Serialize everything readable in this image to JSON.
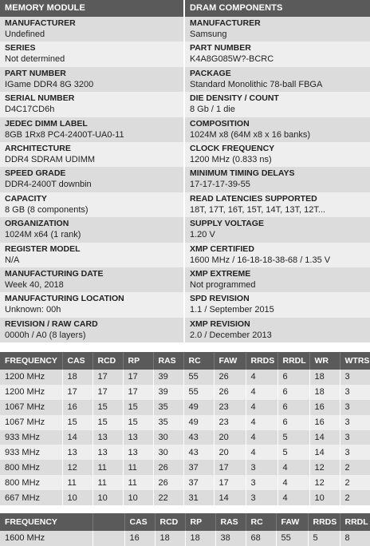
{
  "left": {
    "header": "MEMORY MODULE",
    "fields": [
      {
        "label": "MANUFACTURER",
        "value": "Undefined"
      },
      {
        "label": "SERIES",
        "value": "Not determined"
      },
      {
        "label": "PART NUMBER",
        "value": "IGame DDR4 8G 3200"
      },
      {
        "label": "SERIAL NUMBER",
        "value": "D4C17CD6h"
      },
      {
        "label": "JEDEC DIMM LABEL",
        "value": "8GB 1Rx8 PC4-2400T-UA0-11"
      },
      {
        "label": "ARCHITECTURE",
        "value": "DDR4 SDRAM UDIMM"
      },
      {
        "label": "SPEED GRADE",
        "value": "DDR4-2400T downbin"
      },
      {
        "label": "CAPACITY",
        "value": "8 GB (8 components)"
      },
      {
        "label": "ORGANIZATION",
        "value": "1024M x64 (1 rank)"
      },
      {
        "label": "REGISTER MODEL",
        "value": "N/A"
      },
      {
        "label": "MANUFACTURING DATE",
        "value": "Week 40, 2018"
      },
      {
        "label": "MANUFACTURING LOCATION",
        "value": "Unknown: 00h"
      },
      {
        "label": "REVISION / RAW CARD",
        "value": "0000h / A0 (8 layers)"
      }
    ]
  },
  "right": {
    "header": "DRAM COMPONENTS",
    "fields": [
      {
        "label": "MANUFACTURER",
        "value": "Samsung"
      },
      {
        "label": "PART NUMBER",
        "value": "K4A8G085W?-BCRC"
      },
      {
        "label": "PACKAGE",
        "value": "Standard Monolithic 78-ball FBGA"
      },
      {
        "label": "DIE DENSITY / COUNT",
        "value": "8 Gb / 1 die"
      },
      {
        "label": "COMPOSITION",
        "value": "1024M x8 (64M x8 x 16 banks)"
      },
      {
        "label": "CLOCK FREQUENCY",
        "value": "1200 MHz (0.833 ns)"
      },
      {
        "label": "MINIMUM TIMING DELAYS",
        "value": "17-17-17-39-55"
      },
      {
        "label": "READ LATENCIES SUPPORTED",
        "value": "18T, 17T, 16T, 15T, 14T, 13T, 12T..."
      },
      {
        "label": "SUPPLY VOLTAGE",
        "value": "1.20 V"
      },
      {
        "label": "XMP CERTIFIED",
        "value": "1600 MHz / 16-18-18-38-68 / 1.35 V"
      },
      {
        "label": "XMP EXTREME",
        "value": "Not programmed"
      },
      {
        "label": "SPD REVISION",
        "value": "1.1 / September 2015"
      },
      {
        "label": "XMP REVISION",
        "value": "2.0 / December 2013"
      }
    ]
  },
  "jedec_table": {
    "headers": [
      "FREQUENCY",
      "CAS",
      "RCD",
      "RP",
      "RAS",
      "RC",
      "FAW",
      "RRDS",
      "RRDL",
      "WR",
      "WTRS"
    ],
    "rows": [
      [
        "1200 MHz",
        "18",
        "17",
        "17",
        "39",
        "55",
        "26",
        "4",
        "6",
        "18",
        "3"
      ],
      [
        "1200 MHz",
        "17",
        "17",
        "17",
        "39",
        "55",
        "26",
        "4",
        "6",
        "18",
        "3"
      ],
      [
        "1067 MHz",
        "16",
        "15",
        "15",
        "35",
        "49",
        "23",
        "4",
        "6",
        "16",
        "3"
      ],
      [
        "1067 MHz",
        "15",
        "15",
        "15",
        "35",
        "49",
        "23",
        "4",
        "6",
        "16",
        "3"
      ],
      [
        "933 MHz",
        "14",
        "13",
        "13",
        "30",
        "43",
        "20",
        "4",
        "5",
        "14",
        "3"
      ],
      [
        "933 MHz",
        "13",
        "13",
        "13",
        "30",
        "43",
        "20",
        "4",
        "5",
        "14",
        "3"
      ],
      [
        "800 MHz",
        "12",
        "11",
        "11",
        "26",
        "37",
        "17",
        "3",
        "4",
        "12",
        "2"
      ],
      [
        "800 MHz",
        "11",
        "11",
        "11",
        "26",
        "37",
        "17",
        "3",
        "4",
        "12",
        "2"
      ],
      [
        "667 MHz",
        "10",
        "10",
        "10",
        "22",
        "31",
        "14",
        "3",
        "4",
        "10",
        "2"
      ]
    ]
  },
  "xmp_table": {
    "headers": [
      "FREQUENCY",
      "",
      "CAS",
      "RCD",
      "RP",
      "RAS",
      "RC",
      "FAW",
      "RRDS",
      "RRDL"
    ],
    "rows": [
      [
        "1600 MHz",
        "",
        "16",
        "18",
        "18",
        "38",
        "68",
        "55",
        "5",
        "8"
      ]
    ]
  }
}
